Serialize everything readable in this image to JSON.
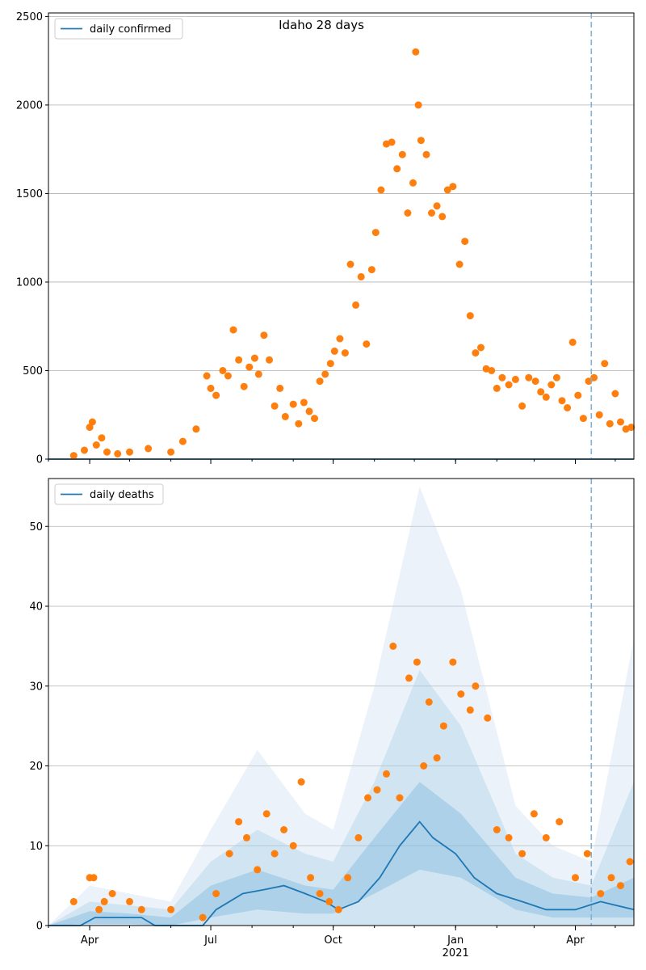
{
  "chart_data": [
    {
      "type": "scatter",
      "title": "Idaho 28 days",
      "xlabel": "",
      "ylabel": "",
      "x_range": [
        "2020-03-01",
        "2021-05-15"
      ],
      "ylim": [
        0,
        2520
      ],
      "y_ticks": [
        0,
        500,
        1000,
        1500,
        2000,
        2500
      ],
      "x_tick_labels": [
        {
          "date": "2020-04-01",
          "label": "Apr"
        },
        {
          "date": "2020-07-01",
          "label": "Jul"
        },
        {
          "date": "2020-10-01",
          "label": "Oct"
        },
        {
          "date": "2021-01-01",
          "label": "Jan"
        },
        {
          "date": "2021-04-01",
          "label": "Apr"
        }
      ],
      "year_label": "2021",
      "grid": "horizontal",
      "legend": "top-left",
      "vline_date": "2021-04-13",
      "series": [
        {
          "name": "daily confirmed",
          "kind": "line",
          "color": "#1f77b4",
          "points": [
            [
              "2020-03-01",
              0
            ],
            [
              "2021-05-15",
              0
            ]
          ]
        },
        {
          "kind": "scatter",
          "color": "#ff7f0e",
          "points": [
            [
              "2020-03-20",
              20
            ],
            [
              "2020-03-28",
              50
            ],
            [
              "2020-04-01",
              180
            ],
            [
              "2020-04-03",
              210
            ],
            [
              "2020-04-06",
              80
            ],
            [
              "2020-04-10",
              120
            ],
            [
              "2020-04-14",
              40
            ],
            [
              "2020-04-22",
              30
            ],
            [
              "2020-05-01",
              40
            ],
            [
              "2020-05-15",
              60
            ],
            [
              "2020-06-01",
              40
            ],
            [
              "2020-06-10",
              100
            ],
            [
              "2020-06-20",
              170
            ],
            [
              "2020-06-28",
              470
            ],
            [
              "2020-07-01",
              400
            ],
            [
              "2020-07-05",
              360
            ],
            [
              "2020-07-10",
              500
            ],
            [
              "2020-07-14",
              470
            ],
            [
              "2020-07-18",
              730
            ],
            [
              "2020-07-22",
              560
            ],
            [
              "2020-07-26",
              410
            ],
            [
              "2020-07-30",
              520
            ],
            [
              "2020-08-03",
              570
            ],
            [
              "2020-08-06",
              480
            ],
            [
              "2020-08-10",
              700
            ],
            [
              "2020-08-14",
              560
            ],
            [
              "2020-08-18",
              300
            ],
            [
              "2020-08-22",
              400
            ],
            [
              "2020-08-26",
              240
            ],
            [
              "2020-09-01",
              310
            ],
            [
              "2020-09-05",
              200
            ],
            [
              "2020-09-09",
              320
            ],
            [
              "2020-09-13",
              270
            ],
            [
              "2020-09-17",
              230
            ],
            [
              "2020-09-21",
              440
            ],
            [
              "2020-09-25",
              480
            ],
            [
              "2020-09-29",
              540
            ],
            [
              "2020-10-02",
              610
            ],
            [
              "2020-10-06",
              680
            ],
            [
              "2020-10-10",
              600
            ],
            [
              "2020-10-14",
              1100
            ],
            [
              "2020-10-18",
              870
            ],
            [
              "2020-10-22",
              1030
            ],
            [
              "2020-10-26",
              650
            ],
            [
              "2020-10-30",
              1070
            ],
            [
              "2020-11-02",
              1280
            ],
            [
              "2020-11-06",
              1520
            ],
            [
              "2020-11-10",
              1780
            ],
            [
              "2020-11-14",
              1790
            ],
            [
              "2020-11-18",
              1640
            ],
            [
              "2020-11-22",
              1720
            ],
            [
              "2020-11-26",
              1390
            ],
            [
              "2020-11-30",
              1560
            ],
            [
              "2020-12-02",
              2300
            ],
            [
              "2020-12-04",
              2000
            ],
            [
              "2020-12-06",
              1800
            ],
            [
              "2020-12-10",
              1720
            ],
            [
              "2020-12-14",
              1390
            ],
            [
              "2020-12-18",
              1430
            ],
            [
              "2020-12-22",
              1370
            ],
            [
              "2020-12-26",
              1520
            ],
            [
              "2020-12-30",
              1540
            ],
            [
              "2021-01-04",
              1100
            ],
            [
              "2021-01-08",
              1230
            ],
            [
              "2021-01-12",
              810
            ],
            [
              "2021-01-16",
              600
            ],
            [
              "2021-01-20",
              630
            ],
            [
              "2021-01-24",
              510
            ],
            [
              "2021-01-28",
              500
            ],
            [
              "2021-02-01",
              400
            ],
            [
              "2021-02-05",
              460
            ],
            [
              "2021-02-10",
              420
            ],
            [
              "2021-02-15",
              450
            ],
            [
              "2021-02-20",
              300
            ],
            [
              "2021-02-25",
              460
            ],
            [
              "2021-03-02",
              440
            ],
            [
              "2021-03-06",
              380
            ],
            [
              "2021-03-10",
              350
            ],
            [
              "2021-03-14",
              420
            ],
            [
              "2021-03-18",
              460
            ],
            [
              "2021-03-22",
              330
            ],
            [
              "2021-03-26",
              290
            ],
            [
              "2021-03-30",
              660
            ],
            [
              "2021-04-03",
              360
            ],
            [
              "2021-04-07",
              230
            ],
            [
              "2021-04-11",
              440
            ],
            [
              "2021-04-15",
              460
            ],
            [
              "2021-04-19",
              250
            ],
            [
              "2021-04-23",
              540
            ],
            [
              "2021-04-27",
              200
            ],
            [
              "2021-05-01",
              370
            ],
            [
              "2021-05-05",
              210
            ],
            [
              "2021-05-09",
              170
            ],
            [
              "2021-05-13",
              180
            ]
          ]
        }
      ]
    },
    {
      "type": "scatter",
      "xlabel": "",
      "ylabel": "",
      "x_range": [
        "2020-03-01",
        "2021-05-15"
      ],
      "ylim": [
        0,
        56
      ],
      "y_ticks": [
        0,
        10,
        20,
        30,
        40,
        50
      ],
      "x_tick_labels": [
        {
          "date": "2020-04-01",
          "label": "Apr"
        },
        {
          "date": "2020-07-01",
          "label": "Jul"
        },
        {
          "date": "2020-10-01",
          "label": "Oct"
        },
        {
          "date": "2021-01-01",
          "label": "Jan"
        },
        {
          "date": "2021-04-01",
          "label": "Apr"
        }
      ],
      "year_label": "2021",
      "grid": "horizontal",
      "legend": "top-left",
      "vline_date": "2021-04-13",
      "bands": [
        {
          "color": "#c6dbef",
          "points": [
            [
              "2020-03-01",
              0,
              0
            ],
            [
              "2020-04-01",
              0,
              5
            ],
            [
              "2020-05-01",
              0,
              4
            ],
            [
              "2020-06-01",
              0,
              3
            ],
            [
              "2020-07-01",
              0,
              12
            ],
            [
              "2020-08-05",
              0,
              22
            ],
            [
              "2020-09-10",
              0,
              14
            ],
            [
              "2020-10-01",
              0,
              12
            ],
            [
              "2020-11-01",
              0,
              30
            ],
            [
              "2020-12-05",
              0,
              55
            ],
            [
              "2021-01-05",
              0,
              42
            ],
            [
              "2021-02-15",
              0,
              15
            ],
            [
              "2021-03-15",
              0,
              10
            ],
            [
              "2021-04-13",
              0,
              8
            ],
            [
              "2021-05-15",
              0,
              36
            ]
          ]
        },
        {
          "color": "#9ecae1",
          "points": [
            [
              "2020-03-01",
              0,
              0
            ],
            [
              "2020-04-01",
              0,
              3
            ],
            [
              "2020-05-01",
              0,
              2.5
            ],
            [
              "2020-06-01",
              0,
              2
            ],
            [
              "2020-07-01",
              0,
              8
            ],
            [
              "2020-08-05",
              0,
              12
            ],
            [
              "2020-09-10",
              0,
              9
            ],
            [
              "2020-10-01",
              0,
              8
            ],
            [
              "2020-11-01",
              0,
              18
            ],
            [
              "2020-12-05",
              0,
              32
            ],
            [
              "2021-01-05",
              0,
              25
            ],
            [
              "2021-02-15",
              0,
              9
            ],
            [
              "2021-03-15",
              0,
              6
            ],
            [
              "2021-04-13",
              0,
              5
            ],
            [
              "2021-05-15",
              0,
              18
            ]
          ]
        },
        {
          "color": "#6baed6",
          "points": [
            [
              "2020-03-01",
              0,
              0
            ],
            [
              "2020-04-01",
              0.2,
              1.8
            ],
            [
              "2020-05-01",
              0.2,
              1.5
            ],
            [
              "2020-06-01",
              0,
              1
            ],
            [
              "2020-07-01",
              1,
              5
            ],
            [
              "2020-08-05",
              2,
              7
            ],
            [
              "2020-09-10",
              1.5,
              5
            ],
            [
              "2020-10-01",
              1.5,
              4.5
            ],
            [
              "2020-11-01",
              4,
              11
            ],
            [
              "2020-12-05",
              7,
              18
            ],
            [
              "2021-01-05",
              6,
              14
            ],
            [
              "2021-02-15",
              2,
              6
            ],
            [
              "2021-03-15",
              1,
              4
            ],
            [
              "2021-04-13",
              1,
              3.5
            ],
            [
              "2021-05-15",
              1,
              6
            ]
          ]
        }
      ],
      "series": [
        {
          "name": "daily deaths",
          "kind": "line",
          "color": "#1f77b4",
          "points": [
            [
              "2020-03-01",
              0
            ],
            [
              "2020-03-25",
              0
            ],
            [
              "2020-04-05",
              1
            ],
            [
              "2020-05-10",
              1
            ],
            [
              "2020-05-20",
              0
            ],
            [
              "2020-06-25",
              0
            ],
            [
              "2020-07-05",
              2
            ],
            [
              "2020-07-25",
              4
            ],
            [
              "2020-08-10",
              4.5
            ],
            [
              "2020-08-25",
              5
            ],
            [
              "2020-09-10",
              4
            ],
            [
              "2020-09-25",
              3
            ],
            [
              "2020-10-05",
              2
            ],
            [
              "2020-10-20",
              3
            ],
            [
              "2020-11-05",
              6
            ],
            [
              "2020-11-20",
              10
            ],
            [
              "2020-12-05",
              13
            ],
            [
              "2020-12-15",
              11
            ],
            [
              "2021-01-01",
              9
            ],
            [
              "2021-01-15",
              6
            ],
            [
              "2021-02-01",
              4
            ],
            [
              "2021-02-20",
              3
            ],
            [
              "2021-03-10",
              2
            ],
            [
              "2021-04-01",
              2
            ],
            [
              "2021-04-20",
              3
            ],
            [
              "2021-05-15",
              2
            ]
          ]
        },
        {
          "kind": "scatter",
          "color": "#ff7f0e",
          "points": [
            [
              "2020-03-20",
              3
            ],
            [
              "2020-04-01",
              6
            ],
            [
              "2020-04-04",
              6
            ],
            [
              "2020-04-08",
              2
            ],
            [
              "2020-04-12",
              3
            ],
            [
              "2020-04-18",
              4
            ],
            [
              "2020-05-01",
              3
            ],
            [
              "2020-05-10",
              2
            ],
            [
              "2020-06-01",
              2
            ],
            [
              "2020-06-25",
              1
            ],
            [
              "2020-07-05",
              4
            ],
            [
              "2020-07-15",
              9
            ],
            [
              "2020-07-22",
              13
            ],
            [
              "2020-07-28",
              11
            ],
            [
              "2020-08-05",
              7
            ],
            [
              "2020-08-12",
              14
            ],
            [
              "2020-08-18",
              9
            ],
            [
              "2020-08-25",
              12
            ],
            [
              "2020-09-01",
              10
            ],
            [
              "2020-09-07",
              18
            ],
            [
              "2020-09-14",
              6
            ],
            [
              "2020-09-21",
              4
            ],
            [
              "2020-09-28",
              3
            ],
            [
              "2020-10-05",
              2
            ],
            [
              "2020-10-12",
              6
            ],
            [
              "2020-10-20",
              11
            ],
            [
              "2020-10-27",
              16
            ],
            [
              "2020-11-03",
              17
            ],
            [
              "2020-11-10",
              19
            ],
            [
              "2020-11-15",
              35
            ],
            [
              "2020-11-20",
              16
            ],
            [
              "2020-11-27",
              31
            ],
            [
              "2020-12-03",
              33
            ],
            [
              "2020-12-08",
              20
            ],
            [
              "2020-12-12",
              28
            ],
            [
              "2020-12-18",
              21
            ],
            [
              "2020-12-23",
              25
            ],
            [
              "2020-12-30",
              33
            ],
            [
              "2021-01-05",
              29
            ],
            [
              "2021-01-12",
              27
            ],
            [
              "2021-01-16",
              30
            ],
            [
              "2021-01-25",
              26
            ],
            [
              "2021-02-01",
              12
            ],
            [
              "2021-02-10",
              11
            ],
            [
              "2021-02-20",
              9
            ],
            [
              "2021-03-01",
              14
            ],
            [
              "2021-03-10",
              11
            ],
            [
              "2021-03-20",
              13
            ],
            [
              "2021-04-01",
              6
            ],
            [
              "2021-04-10",
              9
            ],
            [
              "2021-04-20",
              4
            ],
            [
              "2021-04-28",
              6
            ],
            [
              "2021-05-05",
              5
            ],
            [
              "2021-05-12",
              8
            ]
          ]
        }
      ]
    }
  ]
}
